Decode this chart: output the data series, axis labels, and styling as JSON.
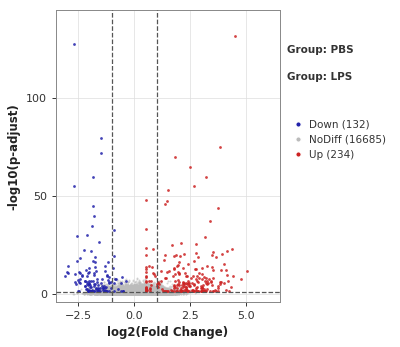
{
  "title": "",
  "xlabel": "log2(Fold Change)",
  "ylabel": "-log10(p-adjust)",
  "xlim": [
    -3.5,
    6.5
  ],
  "ylim": [
    -4,
    145
  ],
  "vline1": -1.0,
  "vline2": 1.0,
  "hline": 1.301,
  "down_color": "#2222AA",
  "nodiff_color": "#BBBBBB",
  "up_color": "#CC2222",
  "down_label": "Down (132)",
  "nodiff_label": "NoDiff (16685)",
  "up_label": "Up (234)",
  "group_label1": "Group: PBS",
  "group_label2": "Group: LPS",
  "grid_color": "#DDDDDD",
  "background_color": "#FFFFFF",
  "xticks": [
    -2.5,
    0.0,
    2.5,
    5.0
  ],
  "yticks": [
    0,
    50,
    100
  ],
  "seed": 42
}
